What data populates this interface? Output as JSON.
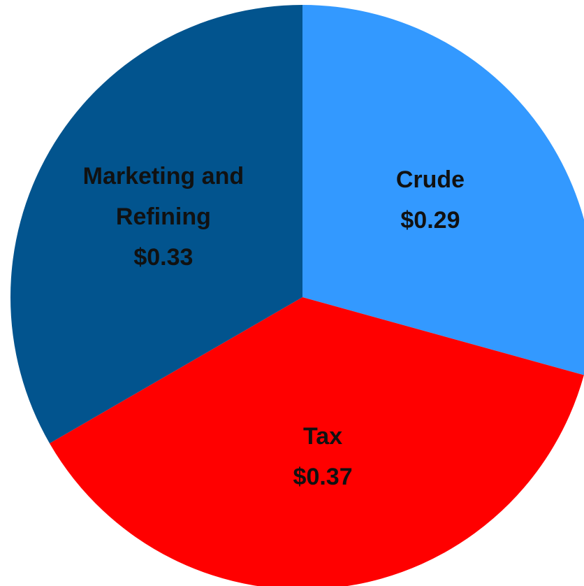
{
  "chart_data": {
    "type": "pie",
    "categories": [
      "Crude",
      "Tax",
      "Marketing and Refining"
    ],
    "values": [
      0.29,
      0.37,
      0.33
    ],
    "value_labels": [
      "$0.29",
      "$0.37",
      "$0.33"
    ],
    "colors": [
      "#3399ff",
      "#ff0000",
      "#02548e"
    ]
  }
}
